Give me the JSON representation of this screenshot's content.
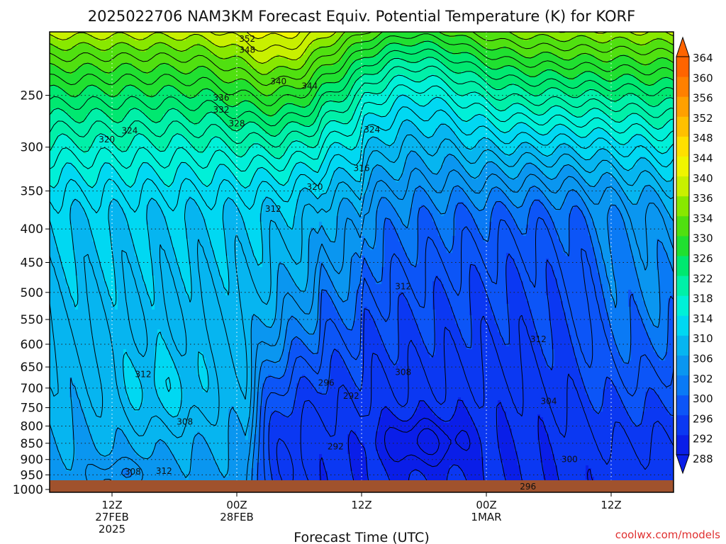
{
  "chart_data": {
    "type": "heatmap",
    "title": "2025022706 NAM3KM Forecast Equiv. Potential Temperature (K) for KORF",
    "xlabel": "Forecast Time (UTC)",
    "ylabel": "",
    "x_ticks": [
      {
        "hour": 12,
        "lines": [
          "12Z",
          "27FEB",
          "2025"
        ]
      },
      {
        "hour": 24,
        "lines": [
          "00Z",
          "28FEB"
        ]
      },
      {
        "hour": 36,
        "lines": [
          "12Z"
        ]
      },
      {
        "hour": 48,
        "lines": [
          "00Z",
          "1MAR"
        ]
      },
      {
        "hour": 60,
        "lines": [
          "12Z"
        ]
      }
    ],
    "xlim_hours": [
      6,
      66
    ],
    "y_ticks": [
      "250",
      "300",
      "350",
      "400",
      "450",
      "500",
      "550",
      "600",
      "650",
      "700",
      "750",
      "800",
      "850",
      "900",
      "950",
      "1000"
    ],
    "ylim_hpa": [
      200,
      1010
    ],
    "y_scale": "log",
    "grid": true,
    "colorbar": {
      "levels": [
        288,
        292,
        296,
        300,
        302,
        306,
        310,
        314,
        318,
        322,
        326,
        330,
        334,
        336,
        340,
        344,
        348,
        352,
        356,
        360,
        364
      ],
      "colors": [
        "#0a1ee8",
        "#0b38f2",
        "#0c55f7",
        "#0a7af5",
        "#0a96f0",
        "#06b5f0",
        "#00d8f2",
        "#00f0d8",
        "#00f0a8",
        "#00e870",
        "#20e030",
        "#50e010",
        "#88e800",
        "#c8f000",
        "#f0f500",
        "#ffe000",
        "#ffc000",
        "#ffa000",
        "#ff8000",
        "#ff6400"
      ],
      "extend": "both"
    },
    "contour_labels": [
      {
        "text": "352",
        "hour": 25,
        "hpa": 205
      },
      {
        "text": "348",
        "hour": 25,
        "hpa": 213
      },
      {
        "text": "340",
        "hour": 28,
        "hpa": 238
      },
      {
        "text": "344",
        "hour": 31,
        "hpa": 242
      },
      {
        "text": "336",
        "hour": 22.5,
        "hpa": 252
      },
      {
        "text": "332",
        "hour": 22.5,
        "hpa": 263
      },
      {
        "text": "328",
        "hour": 24,
        "hpa": 276
      },
      {
        "text": "324",
        "hour": 13.7,
        "hpa": 283
      },
      {
        "text": "320",
        "hour": 11.5,
        "hpa": 292
      },
      {
        "text": "324",
        "hour": 37,
        "hpa": 282
      },
      {
        "text": "316",
        "hour": 36,
        "hpa": 323
      },
      {
        "text": "320",
        "hour": 31.5,
        "hpa": 345
      },
      {
        "text": "312",
        "hour": 27.5,
        "hpa": 373
      },
      {
        "text": "312",
        "hour": 40,
        "hpa": 490
      },
      {
        "text": "312",
        "hour": 53,
        "hpa": 590
      },
      {
        "text": "308",
        "hour": 40,
        "hpa": 662
      },
      {
        "text": "312",
        "hour": 15,
        "hpa": 667
      },
      {
        "text": "296",
        "hour": 32.6,
        "hpa": 687
      },
      {
        "text": "292",
        "hour": 35,
        "hpa": 720
      },
      {
        "text": "304",
        "hour": 54,
        "hpa": 733
      },
      {
        "text": "308",
        "hour": 19,
        "hpa": 788
      },
      {
        "text": "292",
        "hour": 33.5,
        "hpa": 860
      },
      {
        "text": "300",
        "hour": 56,
        "hpa": 900
      },
      {
        "text": "308",
        "hour": 14,
        "hpa": 940
      },
      {
        "text": "312",
        "hour": 17,
        "hpa": 937
      },
      {
        "text": "296",
        "hour": 52,
        "hpa": 990
      }
    ]
  },
  "watermark": "coolwx.com/models"
}
